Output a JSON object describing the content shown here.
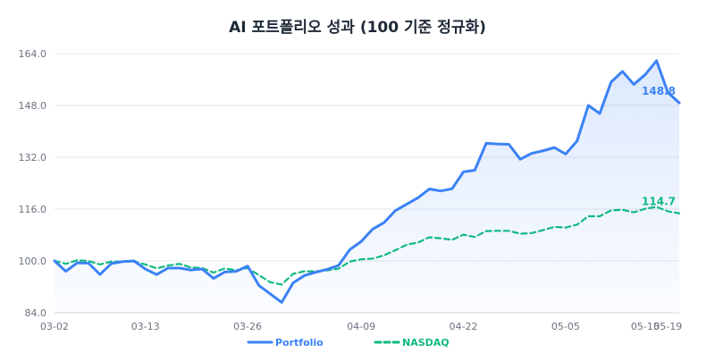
{
  "chart_data": {
    "type": "line",
    "title": "AI 포트폴리오 성과 (100 기준 정규화)",
    "xlabel": "",
    "ylabel": "",
    "ylim": [
      84,
      164
    ],
    "yticks": [
      "84.0",
      "100.0",
      "116.0",
      "132.0",
      "148.0",
      "164.0"
    ],
    "grid": true,
    "legend_position": "bottom",
    "x_tick_labels": [
      {
        "label": "03-02",
        "index": 0
      },
      {
        "label": "03-13",
        "index": 8
      },
      {
        "label": "03-26",
        "index": 17
      },
      {
        "label": "04-09",
        "index": 27
      },
      {
        "label": "04-22",
        "index": 36
      },
      {
        "label": "05-05",
        "index": 45
      },
      {
        "label": "05-15",
        "index": 52
      },
      {
        "label": "05-19",
        "index": 54
      }
    ],
    "series": [
      {
        "name": "Portfolio",
        "color": "#3b82f6",
        "style": "solid",
        "end_label": "148.8",
        "values": [
          100.0,
          96.8,
          99.4,
          99.3,
          95.8,
          99.2,
          99.8,
          100.0,
          97.5,
          95.8,
          97.8,
          97.8,
          97.2,
          97.5,
          94.6,
          96.6,
          96.8,
          98.4,
          92.4,
          89.8,
          87.2,
          93.2,
          95.5,
          96.5,
          97.4,
          98.6,
          103.5,
          106.0,
          109.8,
          111.8,
          115.5,
          117.5,
          119.5,
          122.2,
          121.6,
          122.3,
          127.5,
          128.0,
          136.3,
          136.1,
          136.0,
          131.4,
          133.2,
          134.0,
          135.0,
          133.0,
          137.0,
          148.0,
          145.5,
          155.2,
          158.5,
          154.5,
          157.5,
          161.8,
          152.0,
          148.8
        ]
      },
      {
        "name": "NASDAQ",
        "color": "#10b981",
        "style": "dashed",
        "end_label": "114.7",
        "values": [
          100.0,
          99.1,
          100.2,
          100.0,
          98.9,
          99.8,
          99.8,
          99.8,
          98.9,
          97.7,
          98.6,
          99.1,
          98.0,
          97.8,
          96.4,
          97.7,
          97.1,
          97.8,
          95.6,
          93.4,
          92.7,
          96.0,
          96.8,
          96.8,
          97.1,
          97.6,
          99.8,
          100.5,
          100.7,
          101.7,
          103.3,
          105.0,
          105.7,
          107.3,
          107.0,
          106.5,
          108.1,
          107.4,
          109.2,
          109.3,
          109.3,
          108.4,
          108.6,
          109.5,
          110.5,
          110.3,
          111.2,
          113.8,
          113.8,
          115.6,
          115.8,
          115.0,
          116.1,
          116.7,
          115.3,
          114.7
        ]
      }
    ]
  }
}
